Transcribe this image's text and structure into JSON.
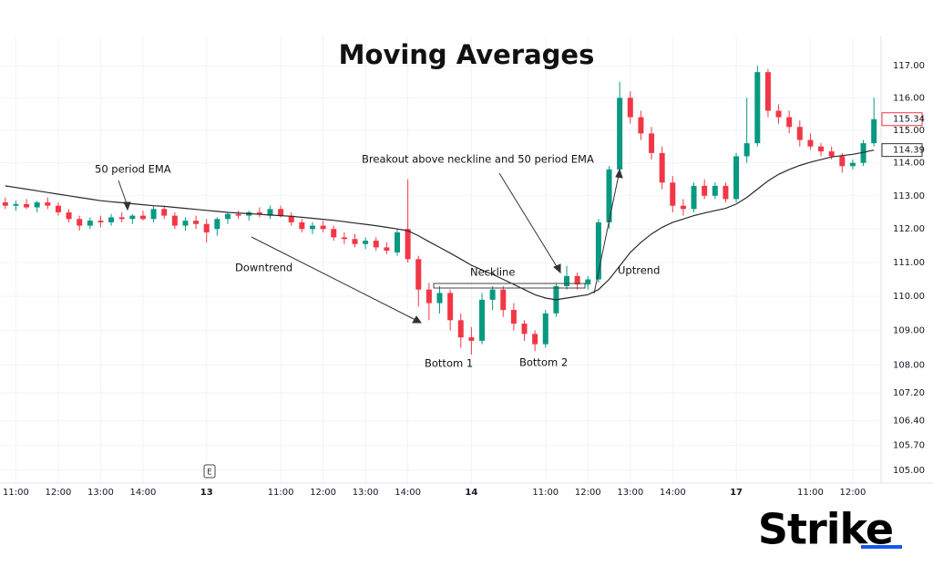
{
  "chart_data": {
    "type": "candlestick",
    "title": "Moving Averages",
    "log": true,
    "grid": true,
    "up_color": "#089981",
    "down_color": "#f23645",
    "ylim": [
      104.64,
      117.92
    ],
    "yticks": [
      {
        "value": 117,
        "label": "117.00"
      },
      {
        "value": 116,
        "label": "116.00"
      },
      {
        "value": 115,
        "label": "115.00"
      },
      {
        "value": 114,
        "label": "114.00"
      },
      {
        "value": 113,
        "label": "113.00"
      },
      {
        "value": 112,
        "label": "112.00"
      },
      {
        "value": 111,
        "label": "111.00"
      },
      {
        "value": 110,
        "label": "110.00"
      },
      {
        "value": 109,
        "label": "109.00"
      },
      {
        "value": 108,
        "label": "108.00"
      },
      {
        "value": 107.2,
        "label": "107.20"
      },
      {
        "value": 106.4,
        "label": "106.40"
      },
      {
        "value": 105.7,
        "label": "105.70"
      },
      {
        "value": 105,
        "label": "105.00"
      }
    ],
    "categories": [
      null,
      "11:00",
      null,
      null,
      null,
      "12:00",
      null,
      null,
      null,
      "13:00",
      null,
      null,
      null,
      "14:00",
      null,
      null,
      null,
      null,
      null,
      "13",
      null,
      null,
      null,
      null,
      null,
      null,
      "11:00",
      null,
      null,
      null,
      "12:00",
      null,
      null,
      null,
      "13:00",
      null,
      null,
      null,
      "14:00",
      null,
      null,
      null,
      null,
      null,
      "14",
      null,
      null,
      null,
      null,
      null,
      null,
      "11:00",
      null,
      null,
      null,
      "12:00",
      null,
      null,
      null,
      "13:00",
      null,
      null,
      null,
      "14:00",
      null,
      null,
      null,
      null,
      null,
      "17",
      null,
      null,
      null,
      null,
      null,
      null,
      "11:00",
      null,
      null,
      null,
      "12:00",
      null,
      null
    ],
    "open": [
      112.8,
      112.7,
      112.75,
      112.65,
      112.8,
      112.7,
      112.5,
      112.3,
      112.1,
      112.25,
      112.2,
      112.35,
      112.3,
      112.4,
      112.3,
      112.6,
      112.4,
      112.1,
      112.25,
      112.15,
      112.0,
      112.3,
      112.45,
      112.4,
      112.5,
      112.4,
      112.6,
      112.4,
      112.2,
      112.0,
      112.1,
      112.0,
      111.75,
      111.7,
      111.55,
      111.65,
      111.45,
      111.3,
      112.0,
      111.1,
      110.2,
      109.8,
      110.1,
      109.3,
      108.8,
      108.7,
      109.9,
      110.2,
      109.6,
      109.2,
      108.9,
      108.6,
      109.5,
      110.3,
      110.6,
      110.35,
      110.5,
      112.2,
      113.8,
      116.0,
      115.4,
      114.9,
      114.3,
      113.4,
      112.7,
      112.6,
      113.3,
      113.0,
      113.3,
      112.9,
      114.2,
      114.6,
      116.8,
      115.6,
      115.4,
      115.1,
      114.7,
      114.5,
      114.35,
      114.2,
      113.9,
      114.0,
      114.6
    ],
    "high": [
      112.95,
      112.85,
      112.9,
      112.85,
      112.95,
      112.8,
      112.6,
      112.4,
      112.35,
      112.4,
      112.45,
      112.5,
      112.45,
      112.55,
      112.7,
      112.7,
      112.5,
      112.35,
      112.4,
      112.3,
      112.35,
      112.5,
      112.55,
      112.55,
      112.65,
      112.7,
      112.7,
      112.5,
      112.3,
      112.2,
      112.25,
      112.1,
      111.9,
      111.85,
      111.75,
      111.75,
      111.6,
      112.0,
      113.5,
      111.2,
      110.4,
      110.3,
      110.2,
      109.5,
      109.1,
      110.1,
      110.3,
      110.3,
      109.8,
      109.3,
      109.0,
      109.6,
      110.4,
      110.9,
      110.7,
      110.6,
      112.3,
      113.9,
      116.5,
      116.2,
      115.6,
      115.1,
      114.5,
      113.6,
      112.9,
      113.4,
      113.5,
      113.4,
      113.4,
      114.3,
      116.0,
      117.0,
      116.9,
      115.8,
      115.6,
      115.3,
      114.9,
      114.6,
      114.5,
      114.3,
      114.1,
      114.7,
      116.0
    ],
    "low": [
      112.6,
      112.55,
      112.6,
      112.5,
      112.6,
      112.4,
      112.2,
      111.95,
      112.0,
      112.05,
      112.1,
      112.2,
      112.15,
      112.25,
      112.2,
      112.3,
      112.0,
      111.95,
      112.0,
      111.6,
      111.8,
      112.15,
      112.3,
      112.25,
      112.35,
      112.3,
      112.35,
      112.1,
      111.9,
      111.85,
      111.9,
      111.65,
      111.55,
      111.45,
      111.4,
      111.35,
      111.25,
      111.2,
      111.0,
      109.7,
      109.3,
      109.5,
      109.0,
      108.5,
      108.3,
      108.6,
      109.6,
      109.4,
      109.0,
      108.7,
      108.4,
      108.5,
      109.4,
      110.2,
      110.2,
      110.2,
      110.4,
      112.0,
      113.6,
      115.2,
      114.7,
      114.1,
      113.2,
      112.5,
      112.4,
      112.5,
      112.9,
      112.9,
      112.8,
      112.8,
      114.0,
      114.5,
      115.4,
      115.2,
      114.9,
      114.5,
      114.4,
      114.2,
      114.1,
      113.7,
      113.8,
      113.9,
      114.5
    ],
    "close": [
      112.7,
      112.75,
      112.65,
      112.8,
      112.7,
      112.5,
      112.3,
      112.1,
      112.25,
      112.2,
      112.35,
      112.3,
      112.4,
      112.3,
      112.6,
      112.4,
      112.1,
      112.25,
      112.15,
      111.9,
      112.3,
      112.45,
      112.4,
      112.5,
      112.45,
      112.6,
      112.4,
      112.2,
      112.0,
      112.1,
      112.0,
      111.75,
      111.7,
      111.55,
      111.65,
      111.45,
      111.35,
      111.9,
      111.1,
      110.2,
      109.8,
      110.1,
      109.3,
      108.8,
      108.7,
      109.9,
      110.2,
      109.6,
      109.2,
      108.9,
      108.6,
      109.5,
      110.3,
      110.6,
      110.35,
      110.5,
      112.2,
      113.8,
      116.0,
      115.4,
      114.9,
      114.3,
      113.4,
      112.7,
      112.6,
      113.3,
      113.0,
      113.3,
      112.9,
      114.2,
      114.6,
      116.8,
      115.6,
      115.4,
      115.1,
      114.7,
      114.5,
      114.35,
      114.2,
      113.9,
      114.0,
      114.6,
      115.34
    ],
    "ema": {
      "color": "#2a2a2a",
      "values": [
        113.3,
        113.25,
        113.2,
        113.15,
        113.1,
        113.05,
        113.0,
        112.95,
        112.9,
        112.85,
        112.82,
        112.79,
        112.76,
        112.73,
        112.7,
        112.68,
        112.65,
        112.62,
        112.59,
        112.56,
        112.53,
        112.5,
        112.48,
        112.46,
        112.44,
        112.42,
        112.4,
        112.38,
        112.35,
        112.32,
        112.29,
        112.26,
        112.22,
        112.18,
        112.14,
        112.1,
        112.05,
        112.0,
        111.95,
        111.8,
        111.62,
        111.45,
        111.28,
        111.1,
        110.92,
        110.78,
        110.65,
        110.5,
        110.35,
        110.2,
        110.05,
        109.95,
        109.9,
        109.95,
        110.0,
        110.05,
        110.2,
        110.5,
        110.9,
        111.3,
        111.6,
        111.85,
        112.05,
        112.2,
        112.3,
        112.4,
        112.48,
        112.55,
        112.62,
        112.75,
        112.95,
        113.2,
        113.45,
        113.65,
        113.8,
        113.92,
        114.02,
        114.1,
        114.18,
        114.22,
        114.26,
        114.32,
        114.39
      ]
    },
    "last_price": {
      "value": 115.34,
      "label": "115.34"
    },
    "ema_last": {
      "value": 114.39,
      "label": "114.39"
    },
    "annotations": {
      "ema": "50 period EMA",
      "downtrend": "Downtrend",
      "neckline": "Neckline",
      "breakout": "Breakout above neckline and 50 period EMA",
      "uptrend": "Uptrend",
      "bottom1": "Bottom 1",
      "bottom2": "Bottom 2"
    },
    "event_marker": "E",
    "logo": "Strike"
  }
}
